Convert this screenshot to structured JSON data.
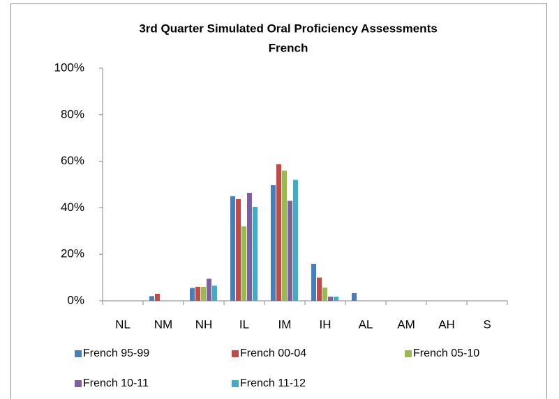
{
  "chart_data": {
    "type": "bar",
    "title": "3rd Quarter Simulated Oral Proficiency Assessments",
    "subtitle": "French",
    "categories": [
      "NL",
      "NM",
      "NH",
      "IL",
      "IM",
      "IH",
      "AL",
      "AM",
      "AH",
      "S"
    ],
    "series": [
      {
        "name": "French 95-99",
        "color": "#4a7ebb",
        "values": [
          0,
          2,
          5.5,
          45,
          49.7,
          15.9,
          3.3,
          0,
          0,
          0
        ]
      },
      {
        "name": "French 00-04",
        "color": "#be4b48",
        "values": [
          0,
          3,
          6,
          43.7,
          58.7,
          10,
          0,
          0,
          0,
          0
        ]
      },
      {
        "name": "French 05-10",
        "color": "#98b954",
        "values": [
          0,
          0,
          6,
          32,
          56,
          5.7,
          0,
          0,
          0,
          0
        ]
      },
      {
        "name": "French 10-11",
        "color": "#7d60a0",
        "values": [
          0,
          0,
          9.5,
          46.4,
          43,
          1.8,
          0,
          0,
          0,
          0
        ]
      },
      {
        "name": "French 11-12",
        "color": "#46aac5",
        "values": [
          0,
          0,
          6.5,
          40.4,
          52,
          1.8,
          0,
          0,
          0,
          0
        ]
      }
    ],
    "ylim": [
      0,
      100
    ],
    "yticks": [
      {
        "value": 0,
        "label": "0%"
      },
      {
        "value": 20,
        "label": "20%"
      },
      {
        "value": 40,
        "label": "40%"
      },
      {
        "value": 60,
        "label": "60%"
      },
      {
        "value": 80,
        "label": "80%"
      },
      {
        "value": 100,
        "label": "100%"
      }
    ],
    "grid": false,
    "legend": "bottom"
  }
}
